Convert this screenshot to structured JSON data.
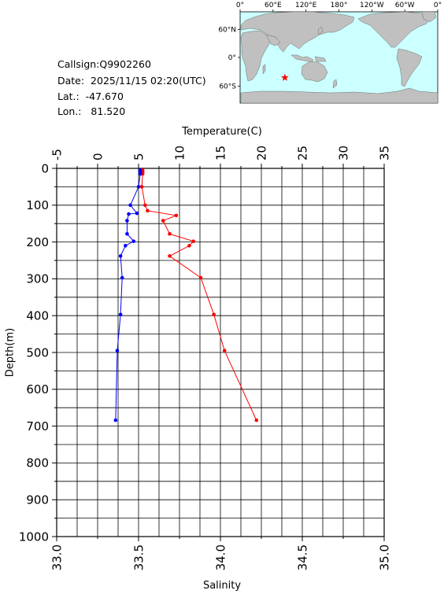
{
  "station": {
    "callsign_text": "Callsign:Q9902260",
    "date_text": "Date:  2025/11/15 02:20(UTC)",
    "lat_text": "Lat.:  -47.670",
    "lon_text": "Lon.:   81.520"
  },
  "map": {
    "lon_labels": [
      "0°",
      "60°E",
      "120°E",
      "180°",
      "120°W",
      "60°W",
      "0°"
    ],
    "lat_labels": [
      "60°N",
      "0°",
      "60°S"
    ],
    "marker": {
      "lon": 81.52,
      "lat": -47.67,
      "symbol": "star",
      "color": "#ff0000"
    },
    "ocean_color": "#ccffff",
    "land_color": "#c0c0c0"
  },
  "chart_data": {
    "type": "line",
    "ylabel": "Depth(m)",
    "y_reversed": true,
    "ylim": [
      0,
      1000
    ],
    "yticks": [
      0,
      100,
      200,
      300,
      400,
      500,
      600,
      700,
      800,
      900,
      1000
    ],
    "top_axis": {
      "label": "Temperature(C)",
      "range": [
        -5,
        35
      ],
      "ticks": [
        -5,
        0,
        5,
        10,
        15,
        20,
        25,
        30,
        35
      ],
      "tick_labels": [
        "-5",
        "0",
        "5",
        "10",
        "15",
        "20",
        "25",
        "30",
        "35"
      ]
    },
    "bottom_axis": {
      "label": "Salinity",
      "range": [
        33.0,
        35.0
      ],
      "ticks": [
        33.0,
        33.5,
        34.0,
        34.5,
        35.0
      ],
      "tick_labels": [
        "33.0",
        "33.5",
        "34.0",
        "34.5",
        "35.0"
      ]
    },
    "grid": true,
    "series": [
      {
        "quantity": "temperature",
        "axis": "top",
        "color": "#ff0000",
        "points": [
          [
            5.5,
            5
          ],
          [
            5.5,
            10
          ],
          [
            5.5,
            15
          ],
          [
            5.4,
            50
          ],
          [
            5.8,
            100
          ],
          [
            6.1,
            115
          ],
          [
            9.6,
            128
          ],
          [
            8.0,
            142
          ],
          [
            8.8,
            178
          ],
          [
            11.7,
            198
          ],
          [
            11.2,
            210
          ],
          [
            8.8,
            238
          ],
          [
            12.6,
            297
          ],
          [
            14.2,
            397
          ],
          [
            15.5,
            495
          ],
          [
            19.4,
            684
          ]
        ]
      },
      {
        "quantity": "salinity",
        "axis": "bottom",
        "color": "#0000ff",
        "points": [
          [
            33.51,
            5
          ],
          [
            33.51,
            10
          ],
          [
            33.51,
            15
          ],
          [
            33.5,
            50
          ],
          [
            33.45,
            100
          ],
          [
            33.49,
            122
          ],
          [
            33.44,
            124
          ],
          [
            33.43,
            142
          ],
          [
            33.43,
            178
          ],
          [
            33.47,
            198
          ],
          [
            33.42,
            210
          ],
          [
            33.39,
            238
          ],
          [
            33.4,
            297
          ],
          [
            33.39,
            397
          ],
          [
            33.37,
            495
          ],
          [
            33.36,
            684
          ]
        ]
      }
    ]
  }
}
